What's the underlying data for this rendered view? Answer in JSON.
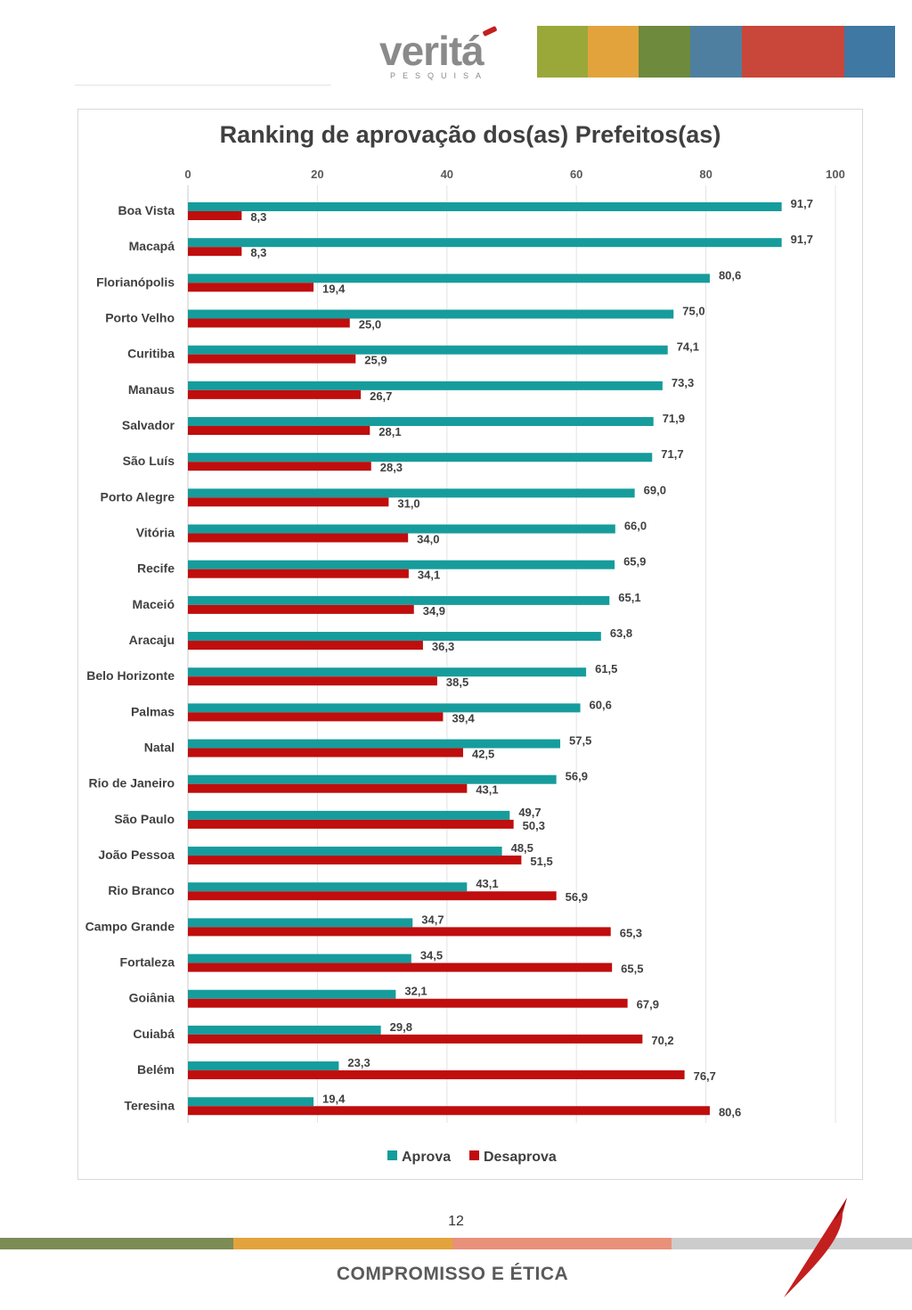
{
  "header": {
    "logo_word": "veritá",
    "logo_sub": "PESQUISA",
    "photo_strip_colors": [
      "#9aa83a",
      "#e3a33c",
      "#6e8a3c",
      "#4f7fa0",
      "#c9463a",
      "#3f78a3"
    ]
  },
  "chart_data": {
    "type": "bar",
    "orientation": "horizontal",
    "title": "Ranking de aprovação dos(as) Prefeitos(as)",
    "xlim": [
      0,
      100
    ],
    "x_ticks": [
      "0",
      "20",
      "40",
      "60",
      "80",
      "100"
    ],
    "grid": true,
    "legend_position": "bottom",
    "categories": [
      "Boa Vista",
      "Macapá",
      "Florianópolis",
      "Porto Velho",
      "Curitiba",
      "Manaus",
      "Salvador",
      "São Luís",
      "Porto Alegre",
      "Vitória",
      "Recife",
      "Maceió",
      "Aracaju",
      "Belo Horizonte",
      "Palmas",
      "Natal",
      "Rio de Janeiro",
      "São Paulo",
      "João Pessoa",
      "Rio Branco",
      "Campo Grande",
      "Fortaleza",
      "Goiânia",
      "Cuiabá",
      "Belém",
      "Teresina"
    ],
    "series": [
      {
        "name": "Aprova",
        "color": "#169c9c",
        "values": [
          91.7,
          91.7,
          80.6,
          75.0,
          74.1,
          73.3,
          71.9,
          71.7,
          69.0,
          66.0,
          65.9,
          65.1,
          63.8,
          61.5,
          60.6,
          57.5,
          56.9,
          49.7,
          48.5,
          43.1,
          34.7,
          34.5,
          32.1,
          29.8,
          23.3,
          19.4
        ],
        "labels": [
          "91,7",
          "91,7",
          "80,6",
          "75,0",
          "74,1",
          "73,3",
          "71,9",
          "71,7",
          "69,0",
          "66,0",
          "65,9",
          "65,1",
          "63,8",
          "61,5",
          "60,6",
          "57,5",
          "56,9",
          "49,7",
          "48,5",
          "43,1",
          "34,7",
          "34,5",
          "32,1",
          "29,8",
          "23,3",
          "19,4"
        ]
      },
      {
        "name": "Desaprova",
        "color": "#c00d0d",
        "values": [
          8.3,
          8.3,
          19.4,
          25.0,
          25.9,
          26.7,
          28.1,
          28.3,
          31.0,
          34.0,
          34.1,
          34.9,
          36.3,
          38.5,
          39.4,
          42.5,
          43.1,
          50.3,
          51.5,
          56.9,
          65.3,
          65.5,
          67.9,
          70.2,
          76.7,
          80.6
        ],
        "labels": [
          "8,3",
          "8,3",
          "19,4",
          "25,0",
          "25,9",
          "26,7",
          "28,1",
          "28,3",
          "31,0",
          "34,0",
          "34,1",
          "34,9",
          "36,3",
          "38,5",
          "39,4",
          "42,5",
          "43,1",
          "50,3",
          "51,5",
          "56,9",
          "65,3",
          "65,5",
          "67,9",
          "70,2",
          "76,7",
          "80,6"
        ]
      }
    ]
  },
  "footer": {
    "page_number": "12",
    "text": "COMPROMISSO E ÉTICA",
    "bar_colors": [
      "#7d8c55",
      "#e3a33c",
      "#e9907a",
      "#cccccc"
    ]
  }
}
